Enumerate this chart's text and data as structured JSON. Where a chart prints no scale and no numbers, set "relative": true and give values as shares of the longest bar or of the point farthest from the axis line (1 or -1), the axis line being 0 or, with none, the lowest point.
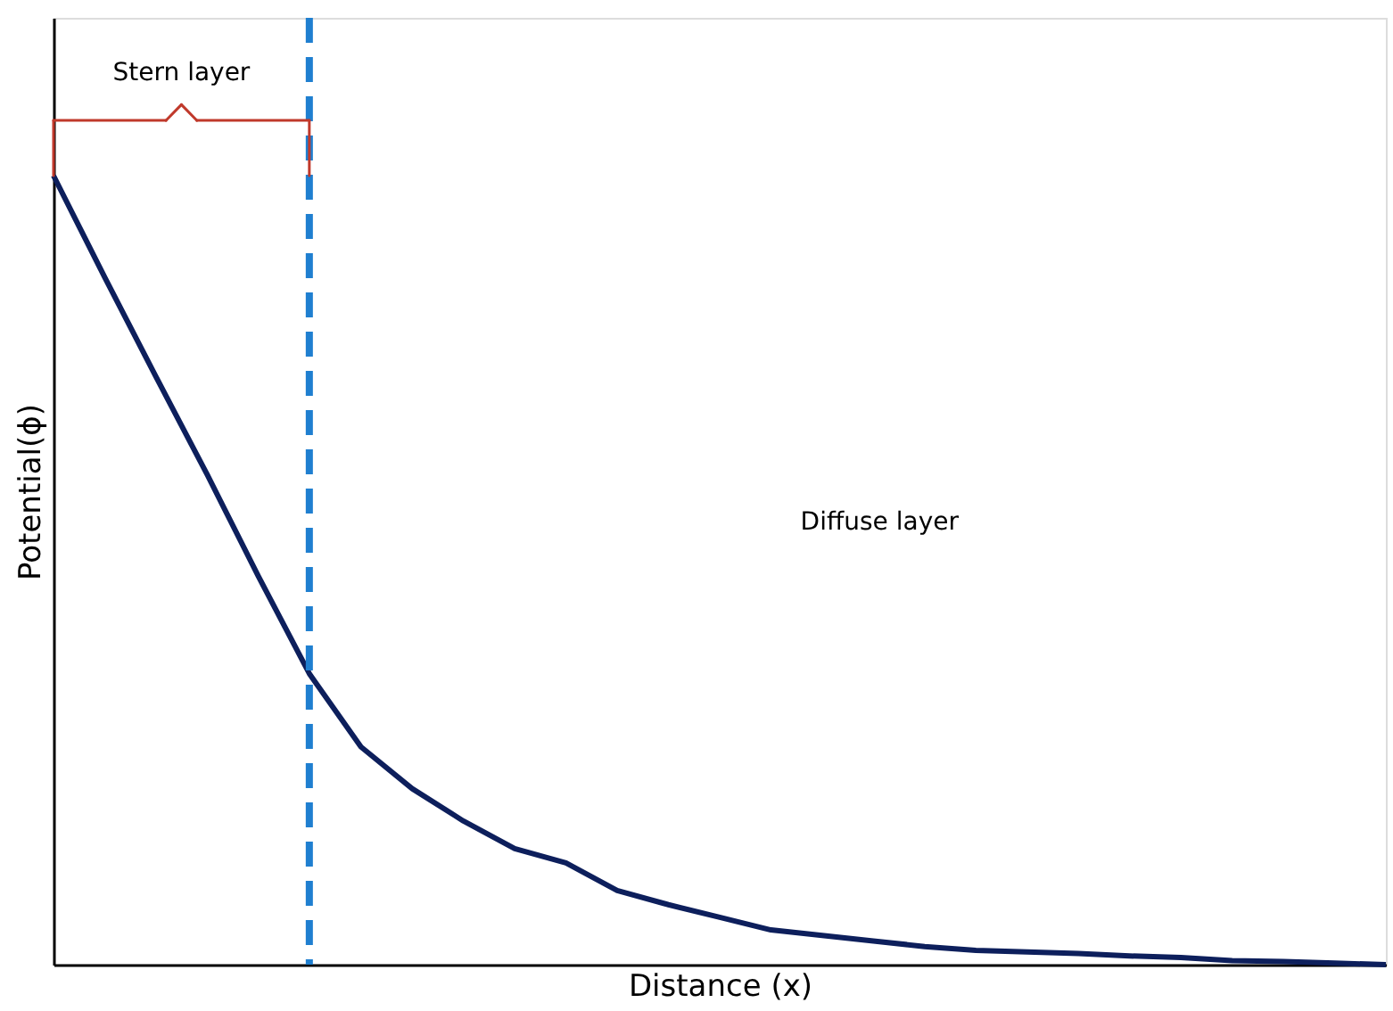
{
  "chart_data": {
    "type": "line",
    "relative": true,
    "xlabel": "Distance (x)",
    "ylabel": "Potential(ϕ)",
    "categories": [
      null,
      null,
      null,
      null,
      null,
      null,
      null,
      null,
      null,
      null,
      null,
      null,
      null,
      null,
      null,
      null,
      null,
      null,
      null,
      null,
      null,
      null,
      null,
      null,
      null,
      null,
      null
    ],
    "tick_labels": false,
    "marker": "none",
    "line_style": "solid",
    "series": [
      {
        "color": "#0d1f5c",
        "values": [
          1.0,
          0.871,
          0.745,
          0.621,
          0.492,
          0.368,
          0.276,
          0.223,
          0.182,
          0.147,
          0.129,
          0.094,
          0.076,
          0.06,
          0.044,
          0.037,
          0.03,
          0.023,
          0.018,
          0.016,
          0.014,
          0.011,
          0.009,
          0.005,
          0.004,
          0.002,
          0.0
        ]
      }
    ],
    "annotations": [
      "Stern layer",
      "Diffuse layer"
    ]
  }
}
